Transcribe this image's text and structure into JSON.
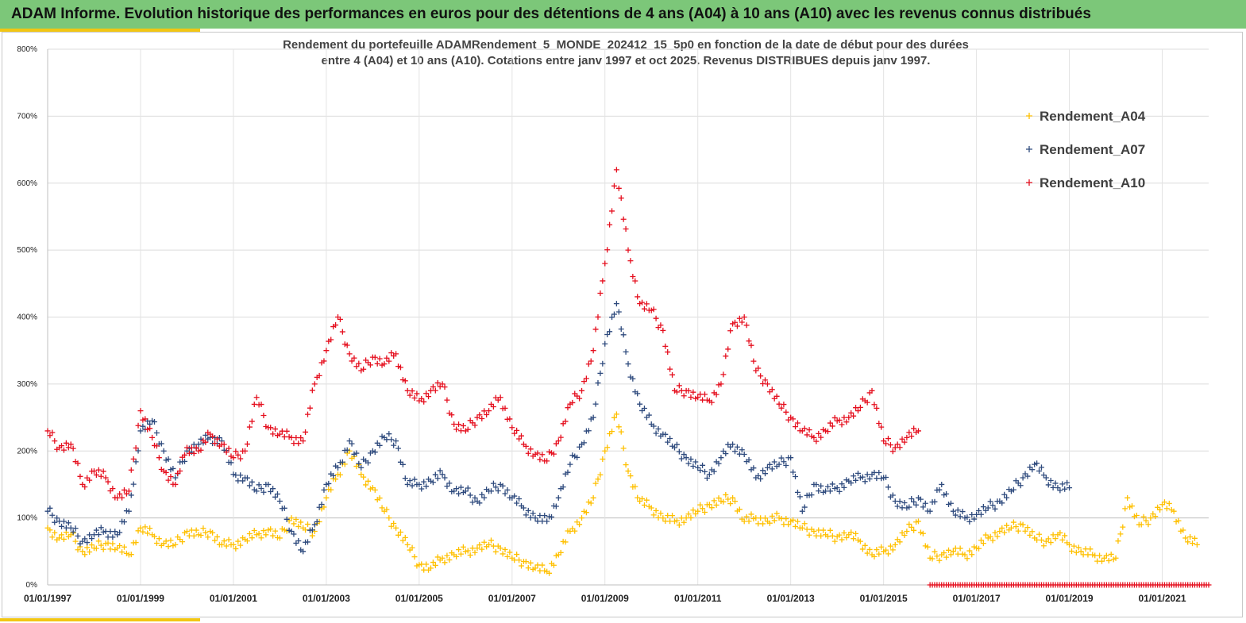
{
  "header": {
    "title": "ADAM Informe. Evolution historique des performances en euros pour des détentions de 4 ans (A04) à 10 ans (A10) avec les revenus connus distribués",
    "bg_color": "#7cc779",
    "accent_color": "#f2c613"
  },
  "chart_data": {
    "type": "scatter",
    "title_line1": "Rendement du portefeuille ADAMRendement_5_MONDE_202412_15_5p0  en fonction de la date de début pour des durées",
    "title_line2": "entre 4 (A04) et 10 ans (A10). Cotations  entre janv 1997 et oct 2025. Revenus DISTRIBUES depuis janv 1997.",
    "xlabel": "",
    "ylabel": "",
    "xlim": [
      1997.0,
      2022.0
    ],
    "ylim": [
      0,
      800
    ],
    "y_ticks": [
      "0%",
      "100%",
      "200%",
      "300%",
      "400%",
      "500%",
      "600%",
      "700%",
      "800%"
    ],
    "x_ticks": [
      "01/01/1997",
      "01/01/1999",
      "01/01/2001",
      "01/01/2003",
      "01/01/2005",
      "01/01/2007",
      "01/01/2009",
      "01/01/2011",
      "01/01/2013",
      "01/01/2015",
      "01/01/2017",
      "01/01/2019",
      "01/01/2021"
    ],
    "legend_position": "top-right",
    "series": [
      {
        "name": "Rendement_A04",
        "color": "#ffc000",
        "x": [
          1997.0,
          1997.25,
          1997.5,
          1997.75,
          1998.0,
          1998.25,
          1998.5,
          1998.75,
          1999.0,
          1999.25,
          1999.5,
          1999.75,
          2000.0,
          2000.25,
          2000.5,
          2000.75,
          2001.0,
          2001.25,
          2001.5,
          2001.75,
          2002.0,
          2002.25,
          2002.5,
          2002.75,
          2003.0,
          2003.25,
          2003.5,
          2003.75,
          2004.0,
          2004.25,
          2004.5,
          2004.75,
          2005.0,
          2005.25,
          2005.5,
          2005.75,
          2006.0,
          2006.25,
          2006.5,
          2006.75,
          2007.0,
          2007.25,
          2007.5,
          2007.75,
          2008.0,
          2008.25,
          2008.5,
          2008.75,
          2009.0,
          2009.25,
          2009.5,
          2009.75,
          2010.0,
          2010.25,
          2010.5,
          2010.75,
          2011.0,
          2011.25,
          2011.5,
          2011.75,
          2012.0,
          2012.25,
          2012.5,
          2012.75,
          2013.0,
          2013.25,
          2013.5,
          2013.75,
          2014.0,
          2014.25,
          2014.5,
          2014.75,
          2015.0,
          2015.25,
          2015.5,
          2015.75,
          2016.0,
          2016.25,
          2016.5,
          2016.75,
          2017.0,
          2017.25,
          2017.5,
          2017.75,
          2018.0,
          2018.25,
          2018.5,
          2018.75,
          2019.0,
          2019.25,
          2019.5,
          2019.75,
          2020.0,
          2020.25,
          2020.5,
          2020.75,
          2021.0,
          2021.25,
          2021.5,
          2021.75
        ],
        "values": [
          85,
          70,
          75,
          50,
          55,
          62,
          55,
          45,
          85,
          75,
          62,
          60,
          80,
          75,
          80,
          60,
          60,
          68,
          75,
          82,
          70,
          100,
          85,
          80,
          130,
          165,
          200,
          165,
          145,
          110,
          85,
          60,
          30,
          25,
          40,
          45,
          50,
          55,
          60,
          55,
          40,
          35,
          25,
          20,
          45,
          80,
          100,
          130,
          200,
          255,
          170,
          125,
          115,
          100,
          95,
          100,
          110,
          120,
          125,
          130,
          95,
          100,
          95,
          100,
          95,
          85,
          80,
          75,
          72,
          75,
          65,
          45,
          50,
          60,
          80,
          95,
          40,
          45,
          50,
          45,
          55,
          70,
          80,
          85,
          90,
          70,
          65,
          75,
          60,
          50,
          45,
          40,
          40,
          130,
          90,
          100,
          120,
          110,
          70,
          60
        ]
      },
      {
        "name": "Rendement_A07",
        "color": "#2e4a7d",
        "x": [
          1997.0,
          1997.25,
          1997.5,
          1997.75,
          1998.0,
          1998.25,
          1998.5,
          1998.75,
          1999.0,
          1999.25,
          1999.5,
          1999.75,
          2000.0,
          2000.25,
          2000.5,
          2000.75,
          2001.0,
          2001.25,
          2001.5,
          2001.75,
          2002.0,
          2002.25,
          2002.5,
          2002.75,
          2003.0,
          2003.25,
          2003.5,
          2003.75,
          2004.0,
          2004.25,
          2004.5,
          2004.75,
          2005.0,
          2005.25,
          2005.5,
          2005.75,
          2006.0,
          2006.25,
          2006.5,
          2006.75,
          2007.0,
          2007.25,
          2007.5,
          2007.75,
          2008.0,
          2008.25,
          2008.5,
          2008.75,
          2009.0,
          2009.25,
          2009.5,
          2009.75,
          2010.0,
          2010.25,
          2010.5,
          2010.75,
          2011.0,
          2011.25,
          2011.5,
          2011.75,
          2012.0,
          2012.25,
          2012.5,
          2012.75,
          2013.0,
          2013.25,
          2013.5,
          2013.75,
          2014.0,
          2014.25,
          2014.5,
          2014.75,
          2015.0,
          2015.25,
          2015.5,
          2015.75,
          2016.0,
          2016.25,
          2016.5,
          2016.75,
          2017.0,
          2017.25,
          2017.5,
          2017.75,
          2018.0,
          2018.25,
          2018.5,
          2018.75,
          2019.0
        ],
        "values": [
          110,
          95,
          85,
          65,
          75,
          80,
          75,
          110,
          230,
          245,
          200,
          160,
          200,
          210,
          220,
          215,
          165,
          160,
          140,
          150,
          125,
          80,
          50,
          90,
          150,
          175,
          215,
          175,
          200,
          220,
          215,
          150,
          150,
          155,
          165,
          140,
          140,
          125,
          140,
          150,
          130,
          115,
          100,
          95,
          130,
          180,
          210,
          250,
          360,
          420,
          330,
          270,
          240,
          225,
          205,
          190,
          175,
          165,
          190,
          210,
          195,
          160,
          175,
          180,
          190,
          110,
          150,
          140,
          145,
          155,
          160,
          165,
          160,
          125,
          115,
          130,
          110,
          150,
          110,
          100,
          105,
          115,
          125,
          140,
          160,
          180,
          160,
          145,
          145
        ]
      },
      {
        "name": "Rendement_A10",
        "color": "#e50f1e",
        "x": [
          1997.0,
          1997.25,
          1997.5,
          1997.75,
          1998.0,
          1998.25,
          1998.5,
          1998.75,
          1999.0,
          1999.25,
          1999.5,
          1999.75,
          2000.0,
          2000.25,
          2000.5,
          2000.75,
          2001.0,
          2001.25,
          2001.5,
          2001.75,
          2002.0,
          2002.25,
          2002.5,
          2002.75,
          2003.0,
          2003.25,
          2003.5,
          2003.75,
          2004.0,
          2004.25,
          2004.5,
          2004.75,
          2005.0,
          2005.25,
          2005.5,
          2005.75,
          2006.0,
          2006.25,
          2006.5,
          2006.75,
          2007.0,
          2007.25,
          2007.5,
          2007.75,
          2008.0,
          2008.25,
          2008.5,
          2008.75,
          2009.0,
          2009.25,
          2009.5,
          2009.75,
          2010.0,
          2010.25,
          2010.5,
          2010.75,
          2011.0,
          2011.25,
          2011.5,
          2011.75,
          2012.0,
          2012.25,
          2012.5,
          2012.75,
          2013.0,
          2013.25,
          2013.5,
          2013.75,
          2014.0,
          2014.25,
          2014.5,
          2014.75,
          2015.0,
          2015.25,
          2015.5,
          2015.75
        ],
        "values": [
          230,
          205,
          210,
          150,
          170,
          160,
          130,
          140,
          260,
          220,
          170,
          150,
          205,
          200,
          225,
          210,
          190,
          200,
          280,
          235,
          225,
          220,
          215,
          300,
          350,
          400,
          345,
          320,
          340,
          330,
          345,
          290,
          275,
          290,
          300,
          240,
          230,
          250,
          260,
          280,
          235,
          210,
          195,
          185,
          215,
          270,
          290,
          350,
          480,
          620,
          500,
          420,
          410,
          380,
          290,
          290,
          280,
          275,
          300,
          390,
          400,
          320,
          300,
          270,
          250,
          230,
          220,
          230,
          245,
          250,
          265,
          290,
          215,
          205,
          220,
          230
        ]
      }
    ],
    "zero_band": {
      "name": "Rendement_A10",
      "color": "#e50f1e",
      "from": 2016.0,
      "to": 2022.0,
      "value": 0
    }
  }
}
